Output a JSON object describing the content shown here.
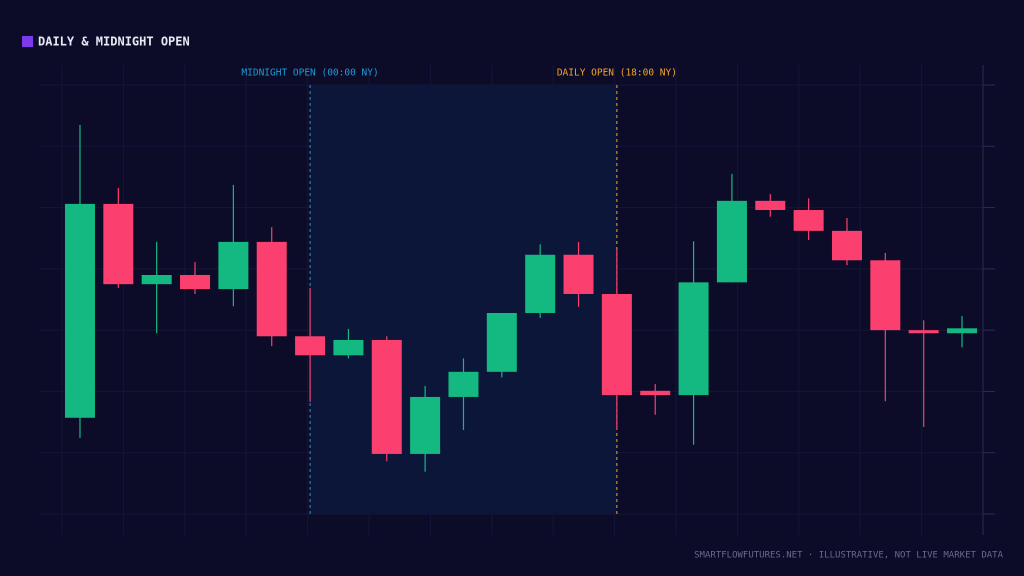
{
  "chart_data": {
    "type": "candlestick",
    "title": "DAILY & MIDNIGHT OPEN",
    "footer": "SMARTFLOWFUTURES.NET · ILLUSTRATIVE, NOT LIVE MARKET DATA",
    "title_color": "#7c3aed",
    "up_color": "#14b981",
    "down_color": "#fb3f6e",
    "open": [
      1.57,
      5.06,
      3.75,
      3.9,
      3.67,
      4.44,
      2.9,
      2.59,
      2.84,
      0.98,
      1.91,
      2.32,
      3.28,
      4.23,
      3.59,
      2.01,
      1.94,
      3.78,
      5.11,
      4.96,
      4.62,
      4.14,
      3.0,
      2.95
    ],
    "high": [
      6.35,
      5.32,
      4.44,
      4.11,
      5.37,
      4.68,
      3.69,
      3.02,
      2.9,
      2.09,
      2.54,
      3.28,
      4.4,
      4.44,
      4.31,
      2.12,
      4.45,
      5.55,
      5.22,
      5.15,
      4.83,
      4.26,
      3.16,
      3.23
    ],
    "low": [
      1.24,
      3.69,
      2.95,
      3.59,
      3.39,
      2.74,
      1.83,
      2.54,
      0.86,
      0.69,
      1.37,
      2.23,
      3.2,
      3.38,
      1.37,
      1.62,
      1.13,
      3.78,
      4.85,
      4.47,
      4.06,
      1.84,
      1.42,
      2.72
    ],
    "close": [
      5.06,
      3.75,
      3.9,
      3.67,
      4.44,
      2.9,
      2.59,
      2.84,
      0.98,
      1.91,
      2.32,
      3.28,
      4.23,
      3.59,
      1.94,
      1.94,
      3.78,
      5.11,
      4.96,
      4.62,
      4.14,
      3.0,
      2.95,
      3.03
    ],
    "ylim": [
      0,
      7
    ],
    "yticks": [
      0,
      1,
      2,
      3,
      4,
      5,
      6,
      7
    ],
    "grid": true,
    "markers": [
      {
        "label": "MIDNIGHT OPEN (00:00 NY)",
        "index": 6,
        "color": "#1e9ad6"
      },
      {
        "label": "DAILY OPEN (18:00 NY)",
        "index": 14,
        "color": "#f5a524"
      }
    ]
  }
}
